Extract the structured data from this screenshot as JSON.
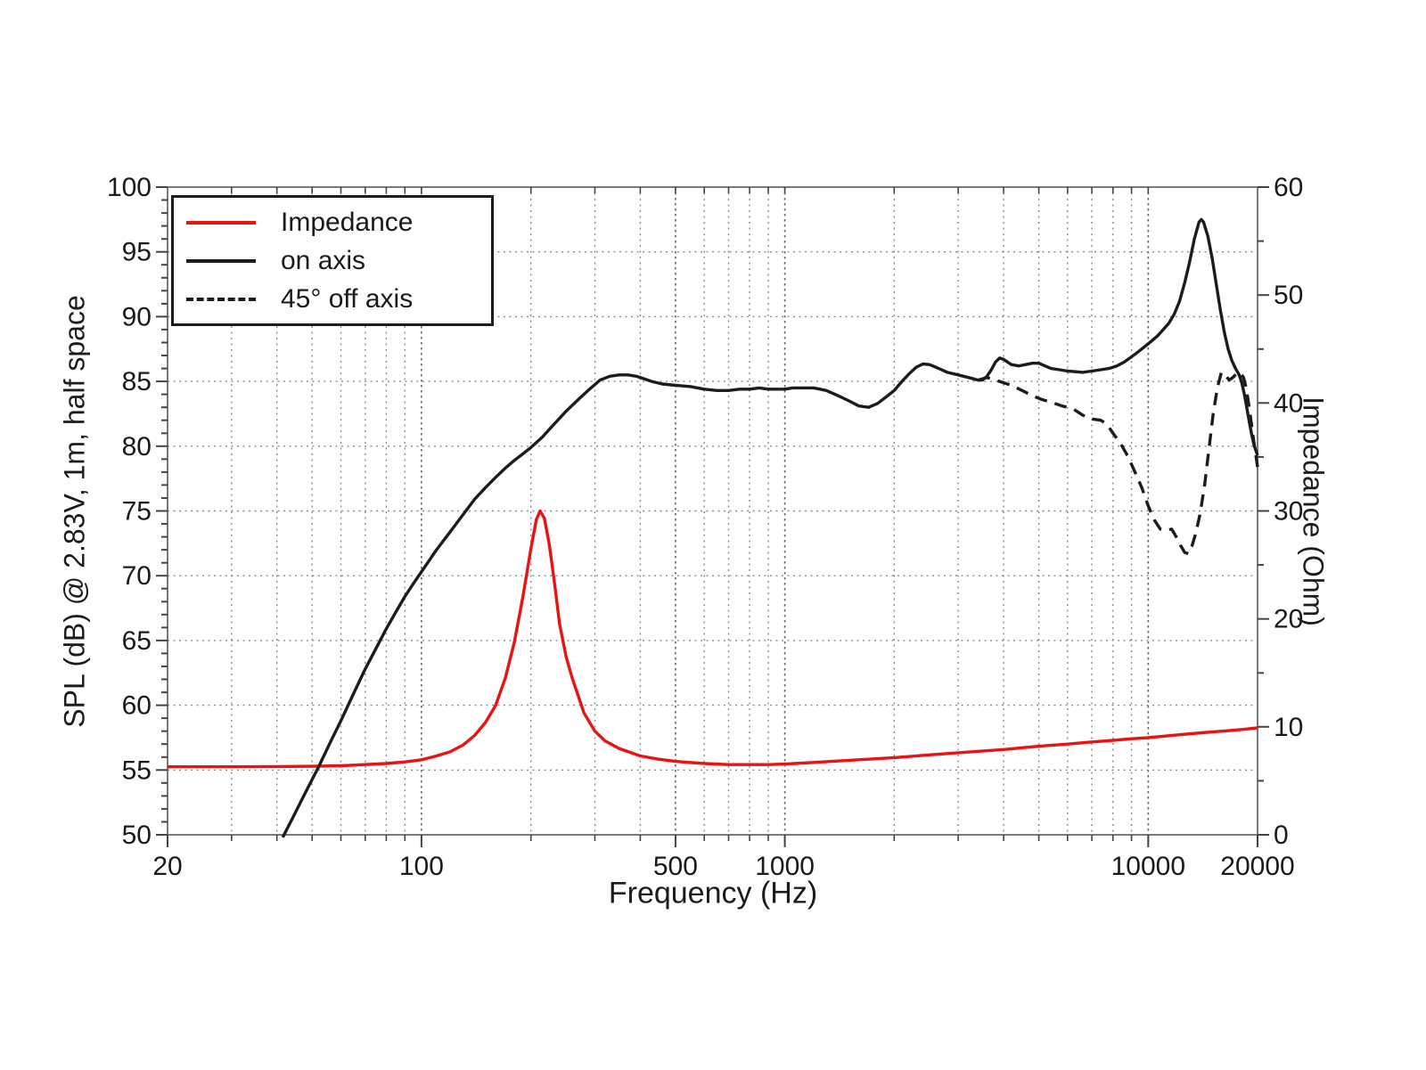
{
  "colors": {
    "impedance_curve": "#e81414",
    "spl_curve": "#1c1c1c",
    "grid": "#8a8a8a",
    "grid_major": "#666666",
    "frame": "#7a7a7a",
    "tick": "#444444",
    "text": "#1a1a1a",
    "background": "#ffffff"
  },
  "chart_data": {
    "type": "line",
    "title": "",
    "xlabel": "Frequency (Hz)",
    "ylabel_left": "SPL (dB) @ 2.83V, 1m, half space",
    "ylabel_right": "Impedance (Ohm)",
    "x_scale": "log",
    "x_range": [
      20,
      20000
    ],
    "y_left_range": [
      50,
      100
    ],
    "y_right_range": [
      0,
      60
    ],
    "y_left_major_step": 5,
    "y_left_minor_step": 1,
    "y_right_major_step": 10,
    "y_right_minor_step": 5,
    "x_major_ticks": [
      20,
      100,
      500,
      1000,
      10000,
      20000
    ],
    "x_major_labels": [
      "20",
      "100",
      "500",
      "1000",
      "10000",
      "20000"
    ],
    "grid": "dotted",
    "legend_position": "top-left",
    "series": [
      {
        "name": "Impedance",
        "axis": "right",
        "style": "solid",
        "color": "#e81414",
        "points": [
          [
            20,
            6.3
          ],
          [
            30,
            6.3
          ],
          [
            40,
            6.32
          ],
          [
            50,
            6.35
          ],
          [
            60,
            6.4
          ],
          [
            70,
            6.5
          ],
          [
            80,
            6.6
          ],
          [
            90,
            6.75
          ],
          [
            100,
            6.95
          ],
          [
            110,
            7.3
          ],
          [
            120,
            7.7
          ],
          [
            130,
            8.3
          ],
          [
            140,
            9.2
          ],
          [
            150,
            10.4
          ],
          [
            160,
            12.0
          ],
          [
            170,
            14.5
          ],
          [
            180,
            17.8
          ],
          [
            190,
            22.0
          ],
          [
            200,
            26.5
          ],
          [
            207,
            29.2
          ],
          [
            212,
            30.0
          ],
          [
            218,
            29.3
          ],
          [
            225,
            26.8
          ],
          [
            232,
            23.5
          ],
          [
            240,
            19.5
          ],
          [
            250,
            16.5
          ],
          [
            260,
            14.5
          ],
          [
            280,
            11.3
          ],
          [
            300,
            9.6
          ],
          [
            320,
            8.7
          ],
          [
            350,
            8.0
          ],
          [
            400,
            7.3
          ],
          [
            450,
            7.0
          ],
          [
            500,
            6.8
          ],
          [
            600,
            6.6
          ],
          [
            700,
            6.5
          ],
          [
            800,
            6.5
          ],
          [
            900,
            6.5
          ],
          [
            1000,
            6.55
          ],
          [
            1200,
            6.7
          ],
          [
            1500,
            6.9
          ],
          [
            2000,
            7.15
          ],
          [
            2500,
            7.4
          ],
          [
            3000,
            7.6
          ],
          [
            4000,
            7.9
          ],
          [
            5000,
            8.2
          ],
          [
            6000,
            8.4
          ],
          [
            7000,
            8.6
          ],
          [
            8000,
            8.75
          ],
          [
            9000,
            8.9
          ],
          [
            10000,
            9.0
          ],
          [
            12000,
            9.25
          ],
          [
            14000,
            9.45
          ],
          [
            16000,
            9.6
          ],
          [
            18000,
            9.75
          ],
          [
            20000,
            9.9
          ]
        ]
      },
      {
        "name": "on axis",
        "axis": "left",
        "style": "solid",
        "color": "#1c1c1c",
        "points": [
          [
            41.5,
            49.8
          ],
          [
            44,
            51.2
          ],
          [
            48,
            53.3
          ],
          [
            52,
            55.2
          ],
          [
            56,
            57.1
          ],
          [
            60,
            58.8
          ],
          [
            65,
            60.9
          ],
          [
            70,
            62.8
          ],
          [
            75,
            64.4
          ],
          [
            80,
            65.9
          ],
          [
            85,
            67.2
          ],
          [
            90,
            68.4
          ],
          [
            95,
            69.4
          ],
          [
            100,
            70.3
          ],
          [
            110,
            72.0
          ],
          [
            120,
            73.4
          ],
          [
            130,
            74.7
          ],
          [
            140,
            75.9
          ],
          [
            150,
            76.8
          ],
          [
            160,
            77.6
          ],
          [
            170,
            78.3
          ],
          [
            180,
            78.9
          ],
          [
            190,
            79.4
          ],
          [
            200,
            79.9
          ],
          [
            215,
            80.7
          ],
          [
            230,
            81.6
          ],
          [
            250,
            82.7
          ],
          [
            270,
            83.6
          ],
          [
            290,
            84.4
          ],
          [
            310,
            85.1
          ],
          [
            330,
            85.4
          ],
          [
            350,
            85.5
          ],
          [
            370,
            85.5
          ],
          [
            390,
            85.4
          ],
          [
            410,
            85.2
          ],
          [
            430,
            85.0
          ],
          [
            460,
            84.8
          ],
          [
            500,
            84.7
          ],
          [
            550,
            84.6
          ],
          [
            600,
            84.4
          ],
          [
            650,
            84.3
          ],
          [
            700,
            84.3
          ],
          [
            750,
            84.4
          ],
          [
            800,
            84.4
          ],
          [
            850,
            84.5
          ],
          [
            900,
            84.4
          ],
          [
            950,
            84.4
          ],
          [
            1000,
            84.4
          ],
          [
            1050,
            84.5
          ],
          [
            1100,
            84.5
          ],
          [
            1150,
            84.5
          ],
          [
            1200,
            84.5
          ],
          [
            1250,
            84.4
          ],
          [
            1300,
            84.3
          ],
          [
            1350,
            84.1
          ],
          [
            1400,
            83.9
          ],
          [
            1450,
            83.7
          ],
          [
            1500,
            83.5
          ],
          [
            1550,
            83.3
          ],
          [
            1600,
            83.1
          ],
          [
            1700,
            83.0
          ],
          [
            1800,
            83.3
          ],
          [
            1900,
            83.8
          ],
          [
            2000,
            84.3
          ],
          [
            2100,
            85.0
          ],
          [
            2200,
            85.6
          ],
          [
            2300,
            86.1
          ],
          [
            2400,
            86.35
          ],
          [
            2500,
            86.3
          ],
          [
            2600,
            86.1
          ],
          [
            2700,
            85.9
          ],
          [
            2800,
            85.7
          ],
          [
            2900,
            85.6
          ],
          [
            3000,
            85.5
          ],
          [
            3100,
            85.4
          ],
          [
            3200,
            85.3
          ],
          [
            3300,
            85.2
          ],
          [
            3400,
            85.1
          ],
          [
            3500,
            85.1
          ],
          [
            3600,
            85.4
          ],
          [
            3700,
            85.9
          ],
          [
            3800,
            86.5
          ],
          [
            3900,
            86.8
          ],
          [
            4000,
            86.7
          ],
          [
            4100,
            86.5
          ],
          [
            4200,
            86.3
          ],
          [
            4400,
            86.2
          ],
          [
            4600,
            86.3
          ],
          [
            4800,
            86.4
          ],
          [
            5000,
            86.4
          ],
          [
            5200,
            86.2
          ],
          [
            5400,
            86.0
          ],
          [
            5700,
            85.9
          ],
          [
            6000,
            85.8
          ],
          [
            6300,
            85.75
          ],
          [
            6600,
            85.7
          ],
          [
            7000,
            85.8
          ],
          [
            7400,
            85.9
          ],
          [
            7800,
            86.0
          ],
          [
            8200,
            86.2
          ],
          [
            8600,
            86.5
          ],
          [
            9000,
            86.9
          ],
          [
            9400,
            87.3
          ],
          [
            9800,
            87.7
          ],
          [
            10200,
            88.1
          ],
          [
            10600,
            88.5
          ],
          [
            11000,
            89.0
          ],
          [
            11400,
            89.5
          ],
          [
            11800,
            90.2
          ],
          [
            12200,
            91.2
          ],
          [
            12600,
            92.6
          ],
          [
            13000,
            94.2
          ],
          [
            13400,
            96.0
          ],
          [
            13800,
            97.3
          ],
          [
            14000,
            97.5
          ],
          [
            14200,
            97.3
          ],
          [
            14600,
            96.2
          ],
          [
            15000,
            94.5
          ],
          [
            15400,
            92.5
          ],
          [
            15800,
            90.5
          ],
          [
            16200,
            88.8
          ],
          [
            16600,
            87.5
          ],
          [
            17000,
            86.6
          ],
          [
            17400,
            86.0
          ],
          [
            17800,
            85.5
          ],
          [
            18100,
            84.9
          ],
          [
            18400,
            84.0
          ],
          [
            18700,
            82.9
          ],
          [
            19000,
            81.8
          ],
          [
            19300,
            80.8
          ],
          [
            19600,
            80.0
          ],
          [
            20000,
            79.3
          ]
        ]
      },
      {
        "name": "45° off axis",
        "axis": "left",
        "style": "dashed",
        "color": "#1c1c1c",
        "points": [
          [
            3400,
            85.1
          ],
          [
            3600,
            85.3
          ],
          [
            3800,
            85.1
          ],
          [
            4000,
            84.9
          ],
          [
            4200,
            84.7
          ],
          [
            4500,
            84.3
          ],
          [
            4800,
            83.9
          ],
          [
            5100,
            83.6
          ],
          [
            5400,
            83.4
          ],
          [
            5800,
            83.1
          ],
          [
            6200,
            82.9
          ],
          [
            6600,
            82.4
          ],
          [
            7000,
            82.1
          ],
          [
            7400,
            82.0
          ],
          [
            7700,
            81.7
          ],
          [
            8000,
            81.0
          ],
          [
            8400,
            80.2
          ],
          [
            8800,
            79.2
          ],
          [
            9200,
            78.0
          ],
          [
            9600,
            76.8
          ],
          [
            10000,
            75.4
          ],
          [
            10400,
            74.3
          ],
          [
            10800,
            73.6
          ],
          [
            11200,
            73.5
          ],
          [
            11600,
            73.6
          ],
          [
            12000,
            72.9
          ],
          [
            12300,
            72.3
          ],
          [
            12600,
            71.8
          ],
          [
            12900,
            71.7
          ],
          [
            13200,
            72.3
          ],
          [
            13500,
            73.2
          ],
          [
            13900,
            74.8
          ],
          [
            14300,
            77.0
          ],
          [
            14700,
            79.8
          ],
          [
            15100,
            82.5
          ],
          [
            15500,
            84.5
          ],
          [
            15900,
            85.7
          ],
          [
            16300,
            85.5
          ],
          [
            16700,
            85.1
          ],
          [
            17100,
            85.3
          ],
          [
            17500,
            85.6
          ],
          [
            17900,
            85.7
          ],
          [
            18300,
            85.3
          ],
          [
            18600,
            84.5
          ],
          [
            18900,
            83.3
          ],
          [
            19200,
            81.9
          ],
          [
            19500,
            80.5
          ],
          [
            20000,
            78.4
          ]
        ]
      }
    ]
  }
}
